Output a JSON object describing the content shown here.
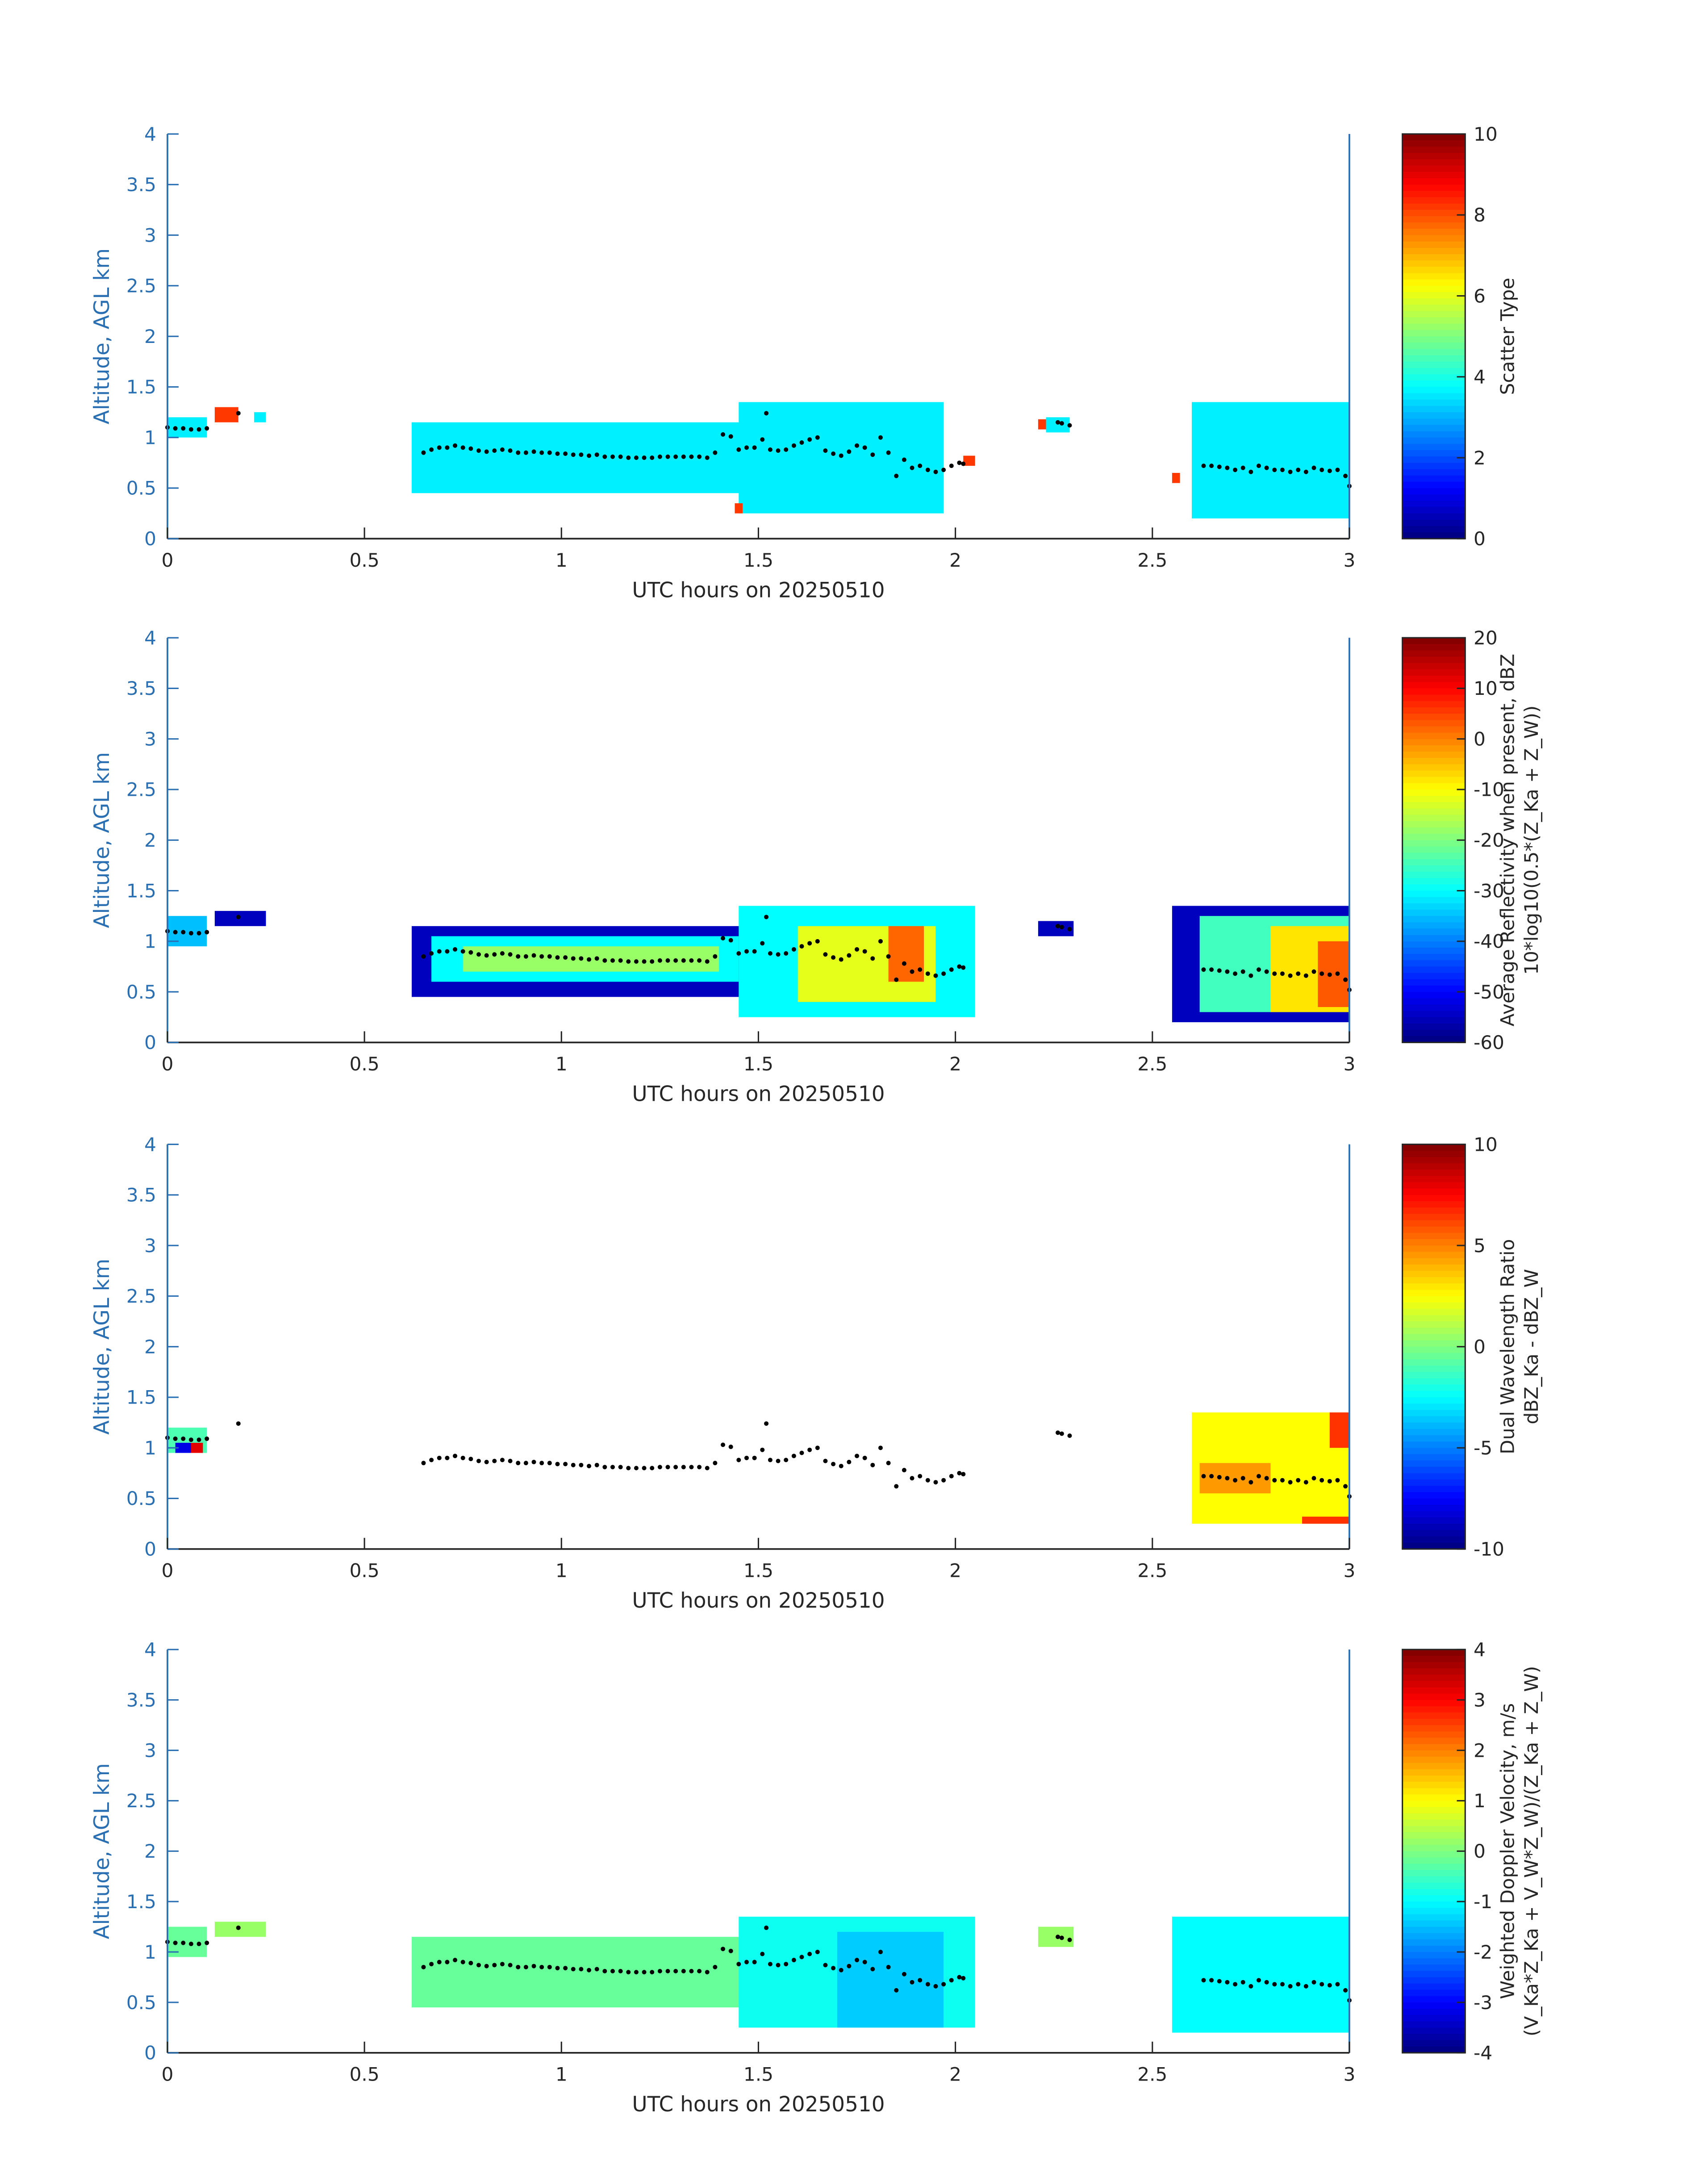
{
  "x_axis": {
    "label": "UTC hours on 20250510",
    "ticks": [
      "0",
      "0.5",
      "1",
      "1.5",
      "2",
      "2.5",
      "3"
    ],
    "range": [
      0,
      3
    ]
  },
  "y_axis": {
    "label": "Altitude, AGL km",
    "ticks": [
      "0",
      "0.5",
      "1",
      "1.5",
      "2",
      "2.5",
      "3",
      "3.5",
      "4"
    ],
    "range": [
      0,
      4
    ]
  },
  "colors": {
    "y_axis": "#2b6fb3",
    "text": "#262626",
    "colormap": "jet",
    "markers": "#000000",
    "scatter_type_main": "#2df2d6",
    "scatter_type_alt": "#f24a18"
  },
  "chart_data": [
    {
      "type": "heatmap",
      "colorbar": {
        "label_lines": [
          "Scatter Type"
        ],
        "range": [
          0,
          10
        ],
        "ticks": [
          "10",
          "8",
          "6",
          "4",
          "2",
          "0"
        ]
      },
      "regions": [
        {
          "x": [
            0.0,
            0.1
          ],
          "y": [
            1.0,
            1.2
          ],
          "value": 3.6
        },
        {
          "x": [
            0.12,
            0.18
          ],
          "y": [
            1.15,
            1.3
          ],
          "value": 8.2
        },
        {
          "x": [
            0.22,
            0.25
          ],
          "y": [
            1.15,
            1.25
          ],
          "value": 3.6
        },
        {
          "x": [
            0.62,
            1.48
          ],
          "y": [
            0.45,
            1.15
          ],
          "value": 3.6
        },
        {
          "x": [
            1.45,
            1.97
          ],
          "y": [
            0.25,
            1.35
          ],
          "value": 3.6
        },
        {
          "x": [
            1.44,
            1.46
          ],
          "y": [
            0.25,
            0.35
          ],
          "value": 8.2
        },
        {
          "x": [
            2.02,
            2.05
          ],
          "y": [
            0.72,
            0.82
          ],
          "value": 8.2
        },
        {
          "x": [
            2.21,
            2.23
          ],
          "y": [
            1.08,
            1.18
          ],
          "value": 8.2
        },
        {
          "x": [
            2.23,
            2.29
          ],
          "y": [
            1.05,
            1.2
          ],
          "value": 3.6
        },
        {
          "x": [
            2.55,
            2.57
          ],
          "y": [
            0.55,
            0.65
          ],
          "value": 8.2
        },
        {
          "x": [
            2.6,
            3.0
          ],
          "y": [
            0.2,
            1.35
          ],
          "value": 3.6
        }
      ]
    },
    {
      "type": "heatmap",
      "colorbar": {
        "label_lines": [
          "Average Reflectivity when present, dBZ",
          "10*log10(0.5*(Z_Ka + Z_W))"
        ],
        "range": [
          -60,
          20
        ],
        "ticks": [
          "20",
          "10",
          "0",
          "-10",
          "-20",
          "-30",
          "-40",
          "-50",
          "-60"
        ]
      },
      "regions": [
        {
          "x": [
            0.0,
            0.1
          ],
          "y": [
            0.95,
            1.25
          ],
          "value": -35
        },
        {
          "x": [
            0.12,
            0.25
          ],
          "y": [
            1.15,
            1.3
          ],
          "value": -55
        },
        {
          "x": [
            0.62,
            1.5
          ],
          "y": [
            0.45,
            1.15
          ],
          "value": -55
        },
        {
          "x": [
            0.67,
            1.45
          ],
          "y": [
            0.6,
            1.05
          ],
          "value": -30
        },
        {
          "x": [
            0.75,
            1.4
          ],
          "y": [
            0.7,
            0.95
          ],
          "value": -18
        },
        {
          "x": [
            1.45,
            2.05
          ],
          "y": [
            0.25,
            1.35
          ],
          "value": -30
        },
        {
          "x": [
            1.6,
            1.95
          ],
          "y": [
            0.4,
            1.15
          ],
          "value": -12
        },
        {
          "x": [
            1.83,
            1.92
          ],
          "y": [
            0.6,
            1.15
          ],
          "value": 2
        },
        {
          "x": [
            2.21,
            2.3
          ],
          "y": [
            1.05,
            1.2
          ],
          "value": -55
        },
        {
          "x": [
            2.55,
            3.0
          ],
          "y": [
            0.2,
            1.35
          ],
          "value": -55
        },
        {
          "x": [
            2.62,
            3.0
          ],
          "y": [
            0.3,
            1.25
          ],
          "value": -25
        },
        {
          "x": [
            2.8,
            3.0
          ],
          "y": [
            0.3,
            1.15
          ],
          "value": -8
        },
        {
          "x": [
            2.92,
            3.0
          ],
          "y": [
            0.35,
            1.0
          ],
          "value": 3
        }
      ]
    },
    {
      "type": "heatmap",
      "colorbar": {
        "label_lines": [
          "Dual Wavelength Ratio",
          "dBZ_Ka - dBZ_W"
        ],
        "range": [
          -10,
          10
        ],
        "ticks": [
          "10",
          "5",
          "0",
          "-5",
          "-10"
        ]
      },
      "regions": [
        {
          "x": [
            0.0,
            0.1
          ],
          "y": [
            0.95,
            1.2
          ],
          "value": -1
        },
        {
          "x": [
            0.02,
            0.06
          ],
          "y": [
            0.95,
            1.05
          ],
          "value": -8
        },
        {
          "x": [
            0.06,
            0.09
          ],
          "y": [
            0.95,
            1.05
          ],
          "value": 8
        },
        {
          "x": [
            2.6,
            3.0
          ],
          "y": [
            0.25,
            1.35
          ],
          "value": 2.5
        },
        {
          "x": [
            2.62,
            2.8
          ],
          "y": [
            0.55,
            0.85
          ],
          "value": 4.5
        },
        {
          "x": [
            2.88,
            3.0
          ],
          "y": [
            0.25,
            0.32
          ],
          "value": 6.5
        },
        {
          "x": [
            2.95,
            3.0
          ],
          "y": [
            1.0,
            1.35
          ],
          "value": 6.5
        }
      ]
    },
    {
      "type": "heatmap",
      "colorbar": {
        "label_lines": [
          "Weighted Doppler Velocity, m/s",
          "(V_Ka*Z_Ka + V_W*Z_W)/(Z_Ka + Z_W)"
        ],
        "range": [
          -4,
          4
        ],
        "ticks": [
          "4",
          "3",
          "2",
          "1",
          "0",
          "-1",
          "-2",
          "-3",
          "-4"
        ]
      },
      "regions": [
        {
          "x": [
            0.0,
            0.1
          ],
          "y": [
            0.95,
            1.25
          ],
          "value": -0.2
        },
        {
          "x": [
            0.12,
            0.25
          ],
          "y": [
            1.15,
            1.3
          ],
          "value": 0.2
        },
        {
          "x": [
            0.62,
            1.5
          ],
          "y": [
            0.45,
            1.15
          ],
          "value": -0.2
        },
        {
          "x": [
            1.45,
            2.05
          ],
          "y": [
            0.25,
            1.35
          ],
          "value": -0.9
        },
        {
          "x": [
            1.7,
            1.97
          ],
          "y": [
            0.25,
            1.2
          ],
          "value": -1.4
        },
        {
          "x": [
            2.21,
            2.3
          ],
          "y": [
            1.05,
            1.25
          ],
          "value": 0.2
        },
        {
          "x": [
            2.55,
            3.0
          ],
          "y": [
            0.2,
            1.35
          ],
          "value": -1.0
        }
      ]
    }
  ],
  "overlay_points": {
    "marker": "black dots",
    "panels": [
      0,
      1,
      2,
      3
    ],
    "x": [
      0.0,
      0.02,
      0.04,
      0.06,
      0.08,
      0.1,
      0.18,
      0.65,
      0.67,
      0.69,
      0.71,
      0.73,
      0.75,
      0.77,
      0.79,
      0.81,
      0.83,
      0.85,
      0.87,
      0.89,
      0.91,
      0.93,
      0.95,
      0.97,
      0.99,
      1.01,
      1.03,
      1.05,
      1.07,
      1.09,
      1.11,
      1.13,
      1.15,
      1.17,
      1.19,
      1.21,
      1.23,
      1.25,
      1.27,
      1.29,
      1.31,
      1.33,
      1.35,
      1.37,
      1.39,
      1.41,
      1.43,
      1.45,
      1.47,
      1.49,
      1.51,
      1.52,
      1.53,
      1.55,
      1.57,
      1.59,
      1.61,
      1.63,
      1.65,
      1.67,
      1.69,
      1.71,
      1.73,
      1.75,
      1.77,
      1.79,
      1.81,
      1.83,
      1.85,
      1.87,
      1.89,
      1.91,
      1.93,
      1.95,
      1.97,
      1.99,
      2.01,
      2.02,
      2.26,
      2.27,
      2.29,
      2.63,
      2.65,
      2.67,
      2.69,
      2.71,
      2.73,
      2.75,
      2.77,
      2.79,
      2.81,
      2.83,
      2.85,
      2.87,
      2.89,
      2.91,
      2.93,
      2.95,
      2.97,
      2.99,
      3.0
    ],
    "y": [
      1.1,
      1.09,
      1.09,
      1.08,
      1.08,
      1.09,
      1.24,
      0.85,
      0.88,
      0.9,
      0.9,
      0.92,
      0.9,
      0.89,
      0.87,
      0.86,
      0.87,
      0.88,
      0.87,
      0.85,
      0.85,
      0.86,
      0.85,
      0.85,
      0.84,
      0.84,
      0.83,
      0.83,
      0.82,
      0.83,
      0.81,
      0.81,
      0.81,
      0.8,
      0.8,
      0.8,
      0.8,
      0.81,
      0.81,
      0.81,
      0.81,
      0.81,
      0.81,
      0.8,
      0.85,
      1.03,
      1.01,
      0.88,
      0.9,
      0.9,
      0.98,
      1.24,
      0.88,
      0.87,
      0.88,
      0.92,
      0.95,
      0.98,
      1.0,
      0.87,
      0.84,
      0.82,
      0.86,
      0.92,
      0.9,
      0.83,
      1.0,
      0.85,
      0.62,
      0.78,
      0.7,
      0.72,
      0.68,
      0.66,
      0.68,
      0.72,
      0.75,
      0.74,
      1.15,
      1.14,
      1.12,
      0.72,
      0.72,
      0.71,
      0.7,
      0.68,
      0.7,
      0.66,
      0.72,
      0.7,
      0.68,
      0.68,
      0.66,
      0.68,
      0.66,
      0.7,
      0.68,
      0.67,
      0.68,
      0.62,
      0.52
    ]
  }
}
